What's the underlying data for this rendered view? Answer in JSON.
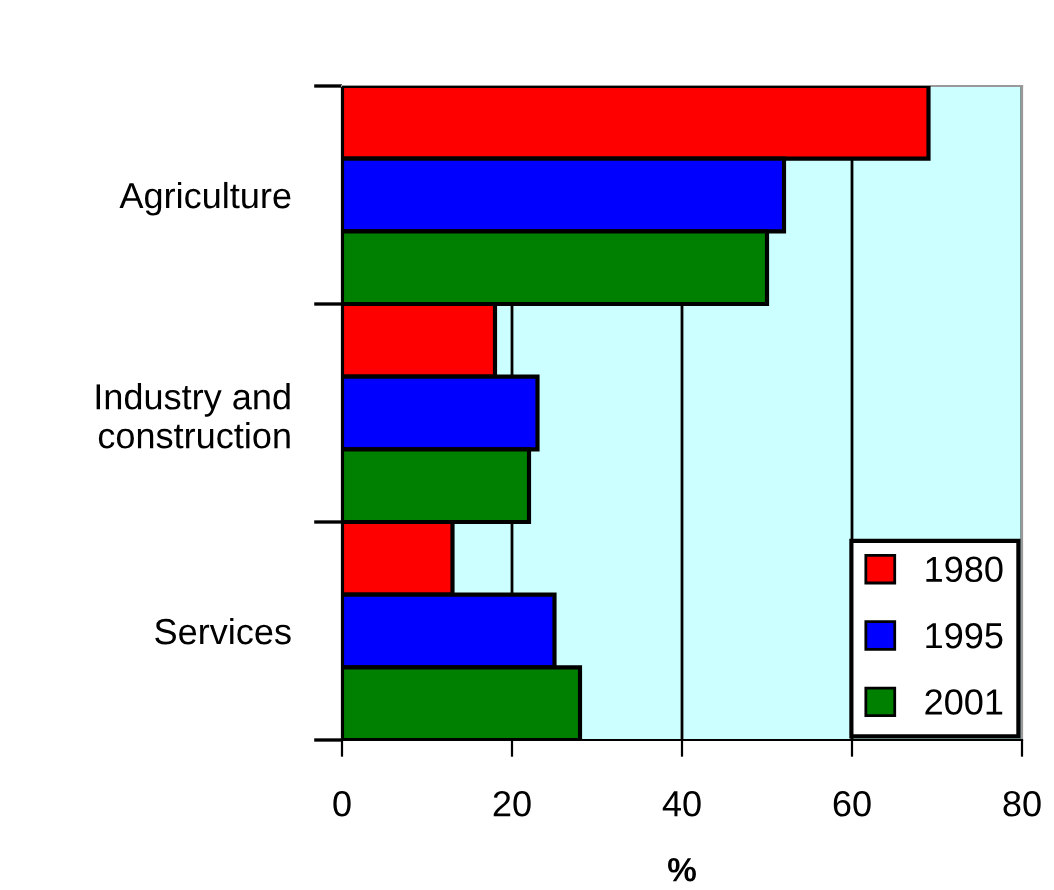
{
  "chart_data": {
    "type": "bar",
    "orientation": "horizontal",
    "xlabel": "%",
    "categories": [
      "Agriculture",
      "Industry and\nconstruction",
      "Services"
    ],
    "series": [
      {
        "name": "1980",
        "color": "#ff0000",
        "values": [
          69,
          18,
          13
        ]
      },
      {
        "name": "1995",
        "color": "#0000ff",
        "values": [
          52,
          23,
          25
        ]
      },
      {
        "name": "2001",
        "color": "#008000",
        "values": [
          50,
          22,
          28
        ]
      }
    ],
    "xlim": [
      0,
      80
    ],
    "xticks": [
      0,
      20,
      40,
      60,
      80
    ],
    "grid": "x",
    "legend": "bottom right"
  }
}
